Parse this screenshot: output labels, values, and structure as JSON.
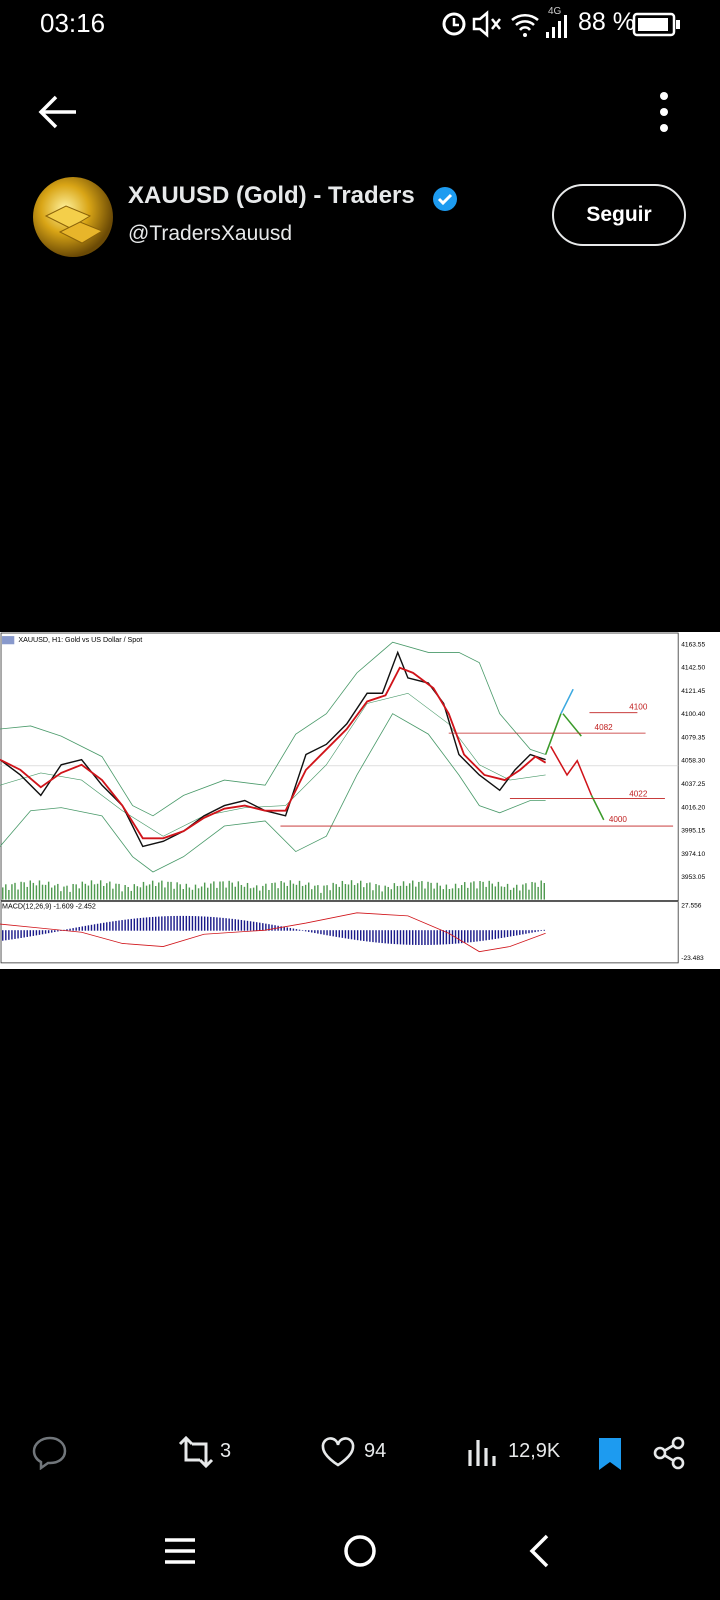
{
  "status_bar": {
    "time": "03:16",
    "network": "4G",
    "battery": "88 %"
  },
  "profile": {
    "name": "XAUUSD (Gold) - Traders",
    "handle": "@TradersXauusd",
    "follow_button": "Seguir"
  },
  "chart_image": {
    "title": "XAUUSD, H1: Gold vs US Dollar / Spot",
    "price_labels": [
      "4163.55",
      "4142.50",
      "4121.45",
      "4100.40",
      "4079.35",
      "4058.30",
      "4037.25",
      "4016.20",
      "3995.15",
      "3974.10",
      "3953.05"
    ],
    "levels": [
      "4100",
      "4082",
      "4022",
      "4000"
    ],
    "macd_label": "MACD(12,26,9) -1.609 -2.452",
    "macd_scale": [
      "27.556",
      "-23.483"
    ]
  },
  "actions": {
    "retweets": "3",
    "likes": "94",
    "views": "12,9K"
  }
}
